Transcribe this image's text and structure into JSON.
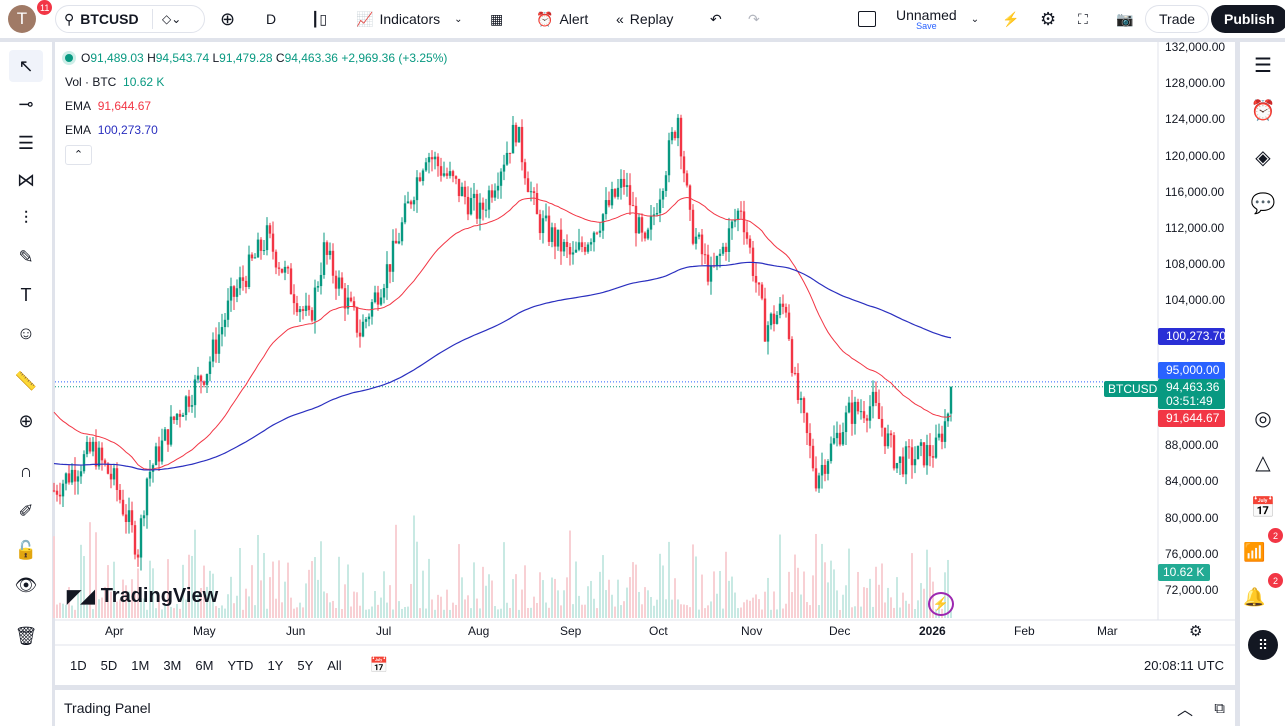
{
  "header": {
    "notifications": "11",
    "avatar_letter": "T",
    "symbol": "BTCUSD",
    "interval": "D",
    "indicators": "Indicators",
    "alert": "Alert",
    "replay": "Replay",
    "layout_name": "Unnamed",
    "layout_save": "Save",
    "trade": "Trade",
    "publish": "Publish"
  },
  "legend": {
    "o_label": "O",
    "open": "91,489.03",
    "h_label": "H",
    "high": "94,543.74",
    "l_label": "L",
    "low": "91,479.28",
    "c_label": "C",
    "close": "94,463.36",
    "change": "+2,969.36 (+3.25%)",
    "vol_label": "Vol · BTC",
    "vol": "10.62 K",
    "ema1_label": "EMA",
    "ema1": "91,644.67",
    "ema2_label": "EMA",
    "ema2": "100,273.70"
  },
  "price_axis": [
    "132,000.00",
    "128,000.00",
    "124,000.00",
    "120,000.00",
    "116,000.00",
    "112,000.00",
    "108,000.00",
    "104,000.00",
    "88,000.00",
    "84,000.00",
    "80,000.00",
    "76,000.00",
    "72,000.00"
  ],
  "price_labels": {
    "ema2": "100,273.70",
    "level": "95,000.00",
    "symbol": "BTCUSD",
    "last": "94,463.36",
    "countdown": "03:51:49",
    "ema1": "91,644.67",
    "volume": "10.62 K"
  },
  "time_axis": [
    "Apr",
    "May",
    "Jun",
    "Jul",
    "Aug",
    "Sep",
    "Oct",
    "Nov",
    "Dec",
    "2026",
    "Feb",
    "Mar"
  ],
  "ranges": [
    "1D",
    "5D",
    "1M",
    "3M",
    "6M",
    "YTD",
    "1Y",
    "5Y",
    "All"
  ],
  "clock": "20:08:11 UTC",
  "watermark": "TradingView",
  "trading_panel": "Trading Panel",
  "badges": {
    "ideas": "2",
    "alerts": "2"
  },
  "colors": {
    "up": "#089981",
    "down": "#f23645",
    "ema50": "#f23645",
    "ema200": "#2a2fbf",
    "level": "#2962ff"
  },
  "chart_data": {
    "type": "candlestick",
    "anchors": [
      [
        "2025-03-12",
        83000
      ],
      [
        "2025-03-25",
        87500
      ],
      [
        "2025-04-01",
        84000
      ],
      [
        "2025-04-09",
        76500
      ],
      [
        "2025-04-12",
        84500
      ],
      [
        "2025-04-22",
        91500
      ],
      [
        "2025-05-02",
        96500
      ],
      [
        "2025-05-10",
        104000
      ],
      [
        "2025-05-22",
        111000
      ],
      [
        "2025-06-05",
        101500
      ],
      [
        "2025-06-10",
        109500
      ],
      [
        "2025-06-22",
        100500
      ],
      [
        "2025-07-03",
        109000
      ],
      [
        "2025-07-10",
        116500
      ],
      [
        "2025-07-14",
        120500
      ],
      [
        "2025-08-01",
        113500
      ],
      [
        "2025-08-13",
        123000
      ],
      [
        "2025-08-20",
        113000
      ],
      [
        "2025-09-01",
        108500
      ],
      [
        "2025-09-18",
        117000
      ],
      [
        "2025-09-25",
        109500
      ],
      [
        "2025-10-06",
        124500
      ],
      [
        "2025-10-10",
        112500
      ],
      [
        "2025-10-17",
        106500
      ],
      [
        "2025-10-27",
        114500
      ],
      [
        "2025-11-04",
        101000
      ],
      [
        "2025-11-11",
        103500
      ],
      [
        "2025-11-14",
        94500
      ],
      [
        "2025-11-21",
        84500
      ],
      [
        "2025-12-02",
        91500
      ],
      [
        "2025-12-10",
        92500
      ],
      [
        "2025-12-18",
        86000
      ],
      [
        "2025-12-31",
        87500
      ],
      [
        "2026-01-04",
        91489
      ],
      [
        "2026-01-05",
        94463
      ]
    ],
    "ema50_seed": 92000,
    "ema200_seed": 86000,
    "ylim": [
      72000,
      132000
    ]
  }
}
